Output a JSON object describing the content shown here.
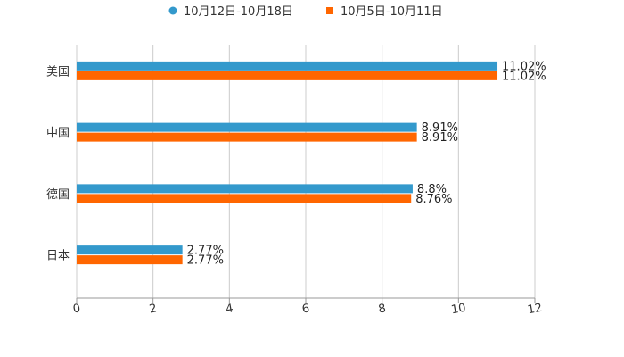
{
  "chart_data": {
    "type": "bar",
    "orientation": "horizontal",
    "categories": [
      "美国",
      "中国",
      "德国",
      "日本"
    ],
    "series": [
      {
        "name": "10月12日-10月18日",
        "values": [
          11.02,
          8.91,
          8.8,
          2.77
        ],
        "labels": [
          "11.02%",
          "8.91%",
          "8.8%",
          "2.77%"
        ],
        "color": "#3399cc"
      },
      {
        "name": "10月5日-10月11日",
        "values": [
          11.02,
          8.91,
          8.76,
          2.77
        ],
        "labels": [
          "11.02%",
          "8.91%",
          "8.76%",
          "2.77%"
        ],
        "color": "#ff6600"
      }
    ],
    "xlim": [
      0,
      12
    ],
    "xticks": [
      0,
      2,
      4,
      6,
      8,
      10,
      12
    ],
    "xtick_labels": [
      "0",
      "2",
      "4",
      "6",
      "8",
      "10",
      "12"
    ],
    "grid": true,
    "legend_position": "top-center",
    "title": "",
    "xlabel": "",
    "ylabel": ""
  }
}
